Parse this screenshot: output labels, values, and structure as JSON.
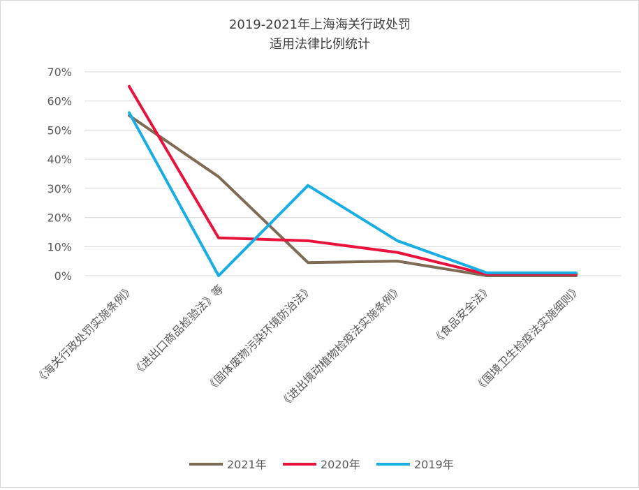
{
  "chart_data": {
    "type": "line",
    "title": "2019-2021年上海海关行政处罚",
    "subtitle": "适用法律比例统计",
    "xlabel": "",
    "ylabel": "",
    "ylim": [
      0,
      70
    ],
    "y_ticks": [
      "0%",
      "10%",
      "20%",
      "30%",
      "40%",
      "50%",
      "60%",
      "70%"
    ],
    "categories": [
      "《海关行政处罚实施条例》",
      "《进出口商品检验法》等",
      "《固体废物污染环境防治法》",
      "《进出境动植物检疫法实施条例》",
      "《食品安全法》",
      "《国境卫生检疫法实施细则》"
    ],
    "grid": true,
    "legend_position": "bottom",
    "series": [
      {
        "name": "2021年",
        "color": "#7f6a54",
        "values": [
          55,
          34,
          4.5,
          5,
          0,
          0
        ]
      },
      {
        "name": "2020年",
        "color": "#e8123c",
        "values": [
          65,
          13,
          12,
          8,
          0.5,
          0.5
        ]
      },
      {
        "name": "2019年",
        "color": "#19aee3",
        "values": [
          56,
          0,
          31,
          12,
          1,
          1
        ]
      }
    ]
  }
}
